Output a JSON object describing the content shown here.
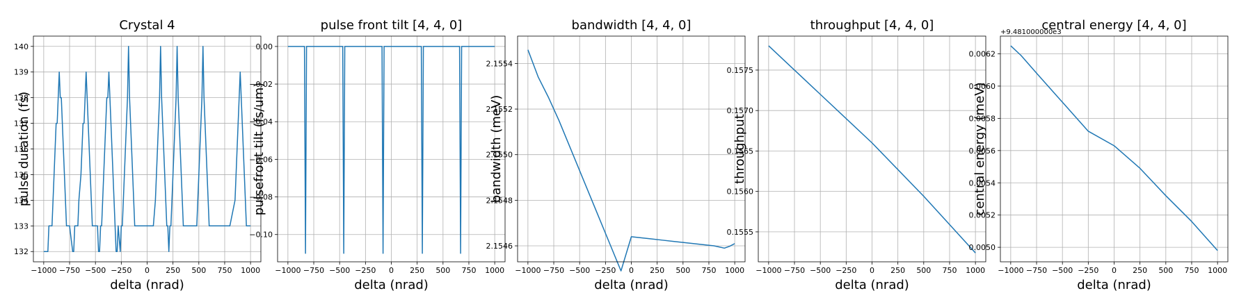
{
  "chart_data": [
    {
      "type": "line",
      "title": "Crystal 4",
      "xlabel": "delta (nrad)",
      "ylabel": "pulse duration (fs)",
      "offset_text": "",
      "xlim": [
        -1100,
        1100
      ],
      "ylim": [
        131.6,
        140.4
      ],
      "xticks": [
        -1000,
        -750,
        -500,
        -250,
        0,
        250,
        500,
        750,
        1000
      ],
      "xtick_labels": [
        "−1000",
        "−750",
        "−500",
        "−250",
        "0",
        "250",
        "500",
        "750",
        "1000"
      ],
      "yticks": [
        132,
        133,
        134,
        135,
        136,
        137,
        138,
        139,
        140
      ],
      "ytick_labels": [
        "132",
        "133",
        "134",
        "135",
        "136",
        "137",
        "138",
        "139",
        "140"
      ],
      "grid": true,
      "series_color": "#1f77b4",
      "series": [
        {
          "x": [
            -1000,
            -960,
            -950,
            -920,
            -910,
            -900,
            -890,
            -880,
            -870,
            -860,
            -850,
            -840,
            -830,
            -820,
            -810,
            -800,
            -790,
            -780,
            -770,
            -760,
            -750,
            -720,
            -710,
            -700,
            -670,
            -660,
            -640,
            -630,
            -620,
            -610,
            -600,
            -590,
            -580,
            -570,
            -560,
            -550,
            -540,
            -530,
            -520,
            -510,
            -500,
            -490,
            -480,
            -470,
            -460,
            -450,
            -440,
            -430,
            -420,
            -410,
            -400,
            -390,
            -380,
            -370,
            -360,
            -350,
            -340,
            -320,
            -310,
            -300,
            -290,
            -280,
            -260,
            -250,
            -240,
            -230,
            -220,
            -210,
            -200,
            -190,
            -180,
            -170,
            -160,
            -150,
            -140,
            -130,
            -120,
            -110,
            -100,
            -90,
            -80,
            -70,
            -60,
            -50,
            -40,
            -30,
            -20,
            -10,
            0,
            10,
            20,
            30,
            40,
            50,
            60,
            80,
            90,
            100,
            110,
            120,
            130,
            140,
            150,
            160,
            170,
            180,
            190,
            200,
            210,
            220,
            230,
            240,
            250,
            260,
            270,
            280,
            290,
            300,
            310,
            320,
            330,
            340,
            350,
            360,
            370,
            380,
            390,
            400,
            410,
            440,
            450,
            460,
            470,
            480,
            490,
            500,
            510,
            520,
            530,
            540,
            550,
            560,
            570,
            580,
            590,
            600,
            610,
            620,
            630,
            640,
            650,
            660,
            670,
            680,
            690,
            700,
            710,
            720,
            730,
            740,
            750,
            760,
            770,
            780,
            790,
            800,
            850,
            860,
            870,
            880,
            890,
            900,
            910,
            920,
            930,
            940,
            950,
            960,
            970,
            980,
            990,
            1000
          ],
          "y": [
            132,
            132,
            133,
            133,
            134,
            135,
            136,
            137,
            137,
            138,
            139,
            138,
            138,
            137,
            136,
            135,
            134,
            133,
            133,
            133,
            133,
            132,
            132,
            133,
            133,
            134,
            135,
            136,
            137,
            137,
            138,
            139,
            138,
            137,
            136,
            135,
            134,
            133,
            133,
            133,
            133,
            133,
            133,
            132,
            132,
            133,
            133,
            134,
            135,
            136,
            137,
            138,
            138,
            139,
            138,
            137,
            136,
            134,
            133,
            132,
            132,
            133,
            132,
            133,
            133,
            134,
            135,
            136,
            137,
            138,
            140,
            138,
            137,
            136,
            135,
            134,
            133,
            133,
            133,
            133,
            133,
            133,
            133,
            133,
            133,
            133,
            133,
            133,
            133,
            133,
            133,
            133,
            133,
            133,
            133,
            134,
            135,
            136,
            137,
            138,
            140,
            138,
            137,
            136,
            135,
            134,
            133,
            133,
            132,
            133,
            133,
            134,
            135,
            136,
            137,
            138,
            140,
            138,
            137,
            136,
            135,
            134,
            133,
            133,
            133,
            133,
            133,
            133,
            133,
            133,
            133,
            133,
            133,
            133,
            134,
            135,
            136,
            137,
            138,
            140,
            138,
            137,
            136,
            135,
            134,
            133,
            133,
            133,
            133,
            133,
            133,
            133,
            133,
            133,
            133,
            133,
            133,
            133,
            133,
            133,
            133,
            133,
            133,
            133,
            133,
            133,
            134,
            135,
            136,
            137,
            138,
            139,
            138,
            137,
            136,
            135,
            134,
            133,
            133,
            133,
            133,
            133
          ]
        }
      ]
    },
    {
      "type": "line",
      "title": "pulse front tilt [4, 4, 0]",
      "xlabel": "delta (nrad)",
      "ylabel": "pulsefront tilt (fs/um)",
      "offset_text": "",
      "xlim": [
        -1100,
        1100
      ],
      "ylim": [
        -0.1145,
        0.0055
      ],
      "xticks": [
        -1000,
        -750,
        -500,
        -250,
        0,
        250,
        500,
        750,
        1000
      ],
      "xtick_labels": [
        "−1000",
        "−750",
        "−500",
        "−250",
        "0",
        "250",
        "500",
        "750",
        "1000"
      ],
      "yticks": [
        0.0,
        -0.02,
        -0.04,
        -0.06,
        -0.08,
        -0.1
      ],
      "ytick_labels": [
        "0.00",
        "−0.02",
        "−0.04",
        "−0.06",
        "−0.08",
        "−0.10"
      ],
      "grid": true,
      "series_color": "#1f77b4",
      "series": [
        {
          "x": [
            -1000,
            -840,
            -830,
            -820,
            -470,
            -460,
            -450,
            -420,
            -90,
            -80,
            -70,
            290,
            300,
            310,
            660,
            670,
            680,
            1000
          ],
          "y": [
            0,
            0,
            -0.11,
            0,
            0,
            -0.11,
            0,
            0,
            0,
            -0.11,
            0,
            0,
            -0.11,
            0,
            0,
            -0.11,
            0,
            0
          ]
        }
      ]
    },
    {
      "type": "line",
      "title": "bandwidth [4, 4, 0]",
      "xlabel": "delta (nrad)",
      "ylabel": "bandwidth (meV)",
      "offset_text": "",
      "xlim": [
        -1100,
        1100
      ],
      "ylim": [
        2.15453,
        2.15552
      ],
      "xticks": [
        -1000,
        -750,
        -500,
        -250,
        0,
        250,
        500,
        750,
        1000
      ],
      "xtick_labels": [
        "−1000",
        "−750",
        "−500",
        "−250",
        "0",
        "250",
        "500",
        "750",
        "1000"
      ],
      "yticks": [
        2.1546,
        2.1548,
        2.155,
        2.1552,
        2.1554
      ],
      "ytick_labels": [
        "2.1546",
        "2.1548",
        "2.1550",
        "2.1552",
        "2.1554"
      ],
      "grid": true,
      "series_color": "#1f77b4",
      "series": [
        {
          "x": [
            -1000,
            -900,
            -800,
            -700,
            -600,
            -500,
            -400,
            -300,
            -200,
            -100,
            0,
            100,
            200,
            300,
            400,
            500,
            600,
            700,
            800,
            900,
            950,
            1000
          ],
          "y": [
            2.15546,
            2.15534,
            2.15525,
            2.15515,
            2.15504,
            2.15493,
            2.15482,
            2.15471,
            2.1546,
            2.15449,
            2.15464,
            2.154635,
            2.15463,
            2.154625,
            2.15462,
            2.154615,
            2.15461,
            2.154605,
            2.1546,
            2.15459,
            2.154598,
            2.15461
          ]
        }
      ]
    },
    {
      "type": "line",
      "title": "throughput [4, 4, 0]",
      "xlabel": "delta (nrad)",
      "ylabel": "throughput",
      "offset_text": "",
      "xlim": [
        -1100,
        1100
      ],
      "ylim": [
        0.15513,
        0.15792
      ],
      "xticks": [
        -1000,
        -750,
        -500,
        -250,
        0,
        250,
        500,
        750,
        1000
      ],
      "xtick_labels": [
        "−1000",
        "−750",
        "−500",
        "−250",
        "0",
        "250",
        "500",
        "750",
        "1000"
      ],
      "yticks": [
        0.1555,
        0.156,
        0.1565,
        0.157,
        0.1575
      ],
      "ytick_labels": [
        "0.1555",
        "0.1560",
        "0.1565",
        "0.1570",
        "0.1575"
      ],
      "grid": true,
      "series_color": "#1f77b4",
      "series": [
        {
          "x": [
            -1000,
            -750,
            -500,
            -250,
            0,
            250,
            500,
            750,
            1000
          ],
          "y": [
            0.1578,
            0.1575,
            0.1572,
            0.1569,
            0.1566,
            0.15627,
            0.15594,
            0.15559,
            0.15524
          ]
        }
      ]
    },
    {
      "type": "line",
      "title": "central energy [4, 4, 0]",
      "xlabel": "delta (nrad)",
      "ylabel": "central energy (meV)",
      "offset_text": "+9.481000000e3",
      "xlim": [
        -1100,
        1100
      ],
      "ylim": [
        0.00491,
        0.00631
      ],
      "xticks": [
        -1000,
        -750,
        -500,
        -250,
        0,
        250,
        500,
        750,
        1000
      ],
      "xtick_labels": [
        "−1000",
        "−750",
        "−500",
        "−250",
        "0",
        "250",
        "500",
        "750",
        "1000"
      ],
      "yticks": [
        0.005,
        0.0052,
        0.0054,
        0.0056,
        0.0058,
        0.006,
        0.0062
      ],
      "ytick_labels": [
        "0.0050",
        "0.0052",
        "0.0054",
        "0.0056",
        "0.0058",
        "0.0060",
        "0.0062"
      ],
      "grid": true,
      "series_color": "#1f77b4",
      "series": [
        {
          "x": [
            -1000,
            -900,
            -750,
            -500,
            -250,
            0,
            250,
            500,
            750,
            1000
          ],
          "y": [
            0.00625,
            0.00619,
            0.00608,
            0.0059,
            0.00572,
            0.00563,
            0.00549,
            0.00532,
            0.00516,
            0.00498
          ]
        }
      ]
    }
  ]
}
